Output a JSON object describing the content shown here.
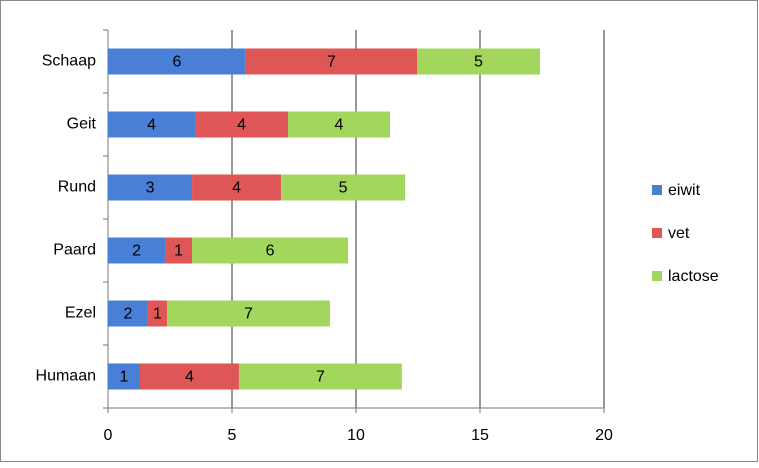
{
  "chart_data": {
    "type": "stacked-bar-horizontal",
    "categories": [
      "Schaap",
      "Geit",
      "Rund",
      "Paard",
      "Ezel",
      "Humaan"
    ],
    "series": [
      {
        "name": "eiwit",
        "color": "#4a7fd6",
        "values": [
          5.56,
          3.51,
          3.39,
          2.3,
          1.61,
          1.29
        ],
        "value_labels": [
          "6",
          "4",
          "3",
          "2",
          "2",
          "1"
        ]
      },
      {
        "name": "vet",
        "color": "#de5656",
        "values": [
          6.9,
          3.75,
          3.59,
          1.09,
          0.77,
          3.99
        ],
        "value_labels": [
          "7",
          "4",
          "4",
          "1",
          "1",
          "4"
        ]
      },
      {
        "name": "lactose",
        "color": "#a3d65c",
        "values": [
          4.96,
          4.11,
          5.0,
          6.29,
          6.57,
          6.57
        ],
        "value_labels": [
          "5",
          "4",
          "5",
          "6",
          "7",
          "7"
        ]
      }
    ],
    "xlim": [
      0,
      20
    ],
    "xticks": [
      0,
      5,
      10,
      15,
      20
    ],
    "grid": true,
    "legend": "right"
  }
}
